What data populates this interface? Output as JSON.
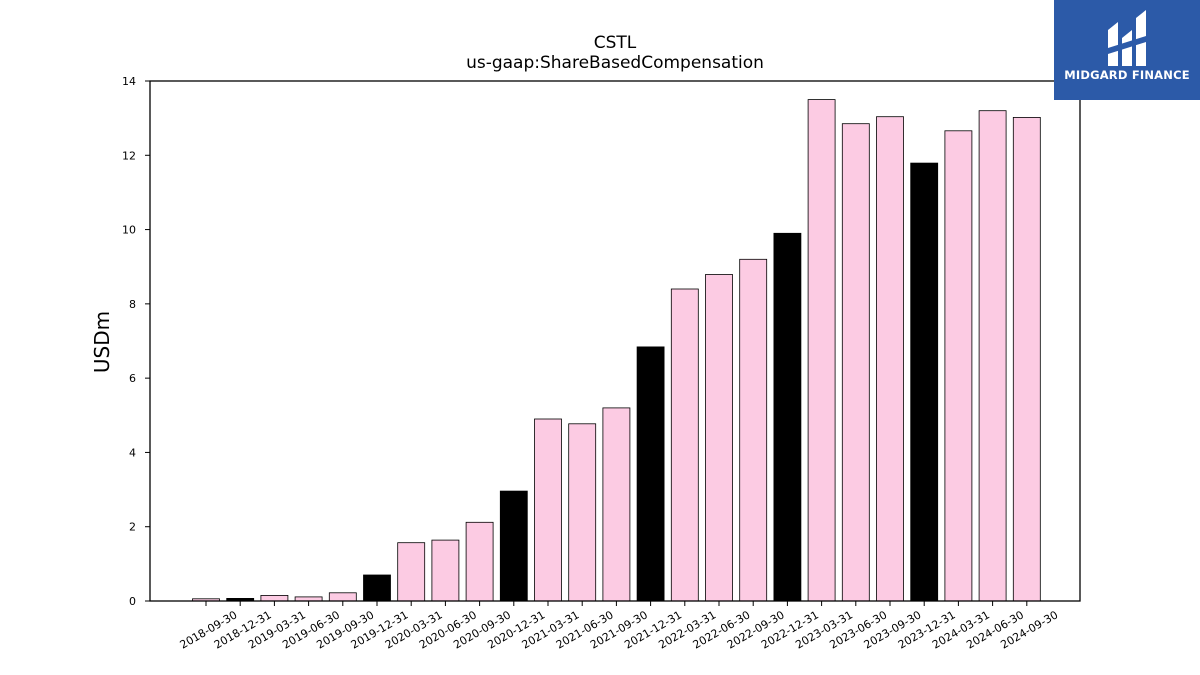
{
  "chart_data": {
    "type": "bar",
    "title": "CSTL",
    "subtitle": "us-gaap:ShareBasedCompensation",
    "xlabel": "",
    "ylabel": "USDm",
    "ylim": [
      0,
      14
    ],
    "yticks": [
      "0",
      "2",
      "4",
      "6",
      "8",
      "10",
      "12",
      "14"
    ],
    "grid": false,
    "categories": [
      "2018-09-30",
      "2018-12-31",
      "2019-03-31",
      "2019-06-30",
      "2019-09-30",
      "2019-12-31",
      "2020-03-31",
      "2020-06-30",
      "2020-09-30",
      "2020-12-31",
      "2021-03-31",
      "2021-06-30",
      "2021-09-30",
      "2021-12-31",
      "2022-03-31",
      "2022-06-30",
      "2022-09-30",
      "2022-12-31",
      "2023-03-31",
      "2023-06-30",
      "2023-09-30",
      "2023-12-31",
      "2024-03-31",
      "2024-06-30",
      "2024-09-30"
    ],
    "values": [
      0.06,
      0.07,
      0.15,
      0.11,
      0.22,
      0.7,
      1.57,
      1.64,
      2.12,
      2.96,
      4.9,
      4.77,
      5.2,
      6.84,
      8.4,
      8.79,
      9.2,
      9.9,
      13.5,
      12.85,
      13.04,
      11.79,
      12.66,
      13.2,
      13.02
    ],
    "colors": {
      "default": "#fccbe3",
      "q4": "#000000",
      "edge": "#000000"
    }
  },
  "logo": {
    "text": "MIDGARD FINANCE",
    "background": "#2c5aa8"
  }
}
